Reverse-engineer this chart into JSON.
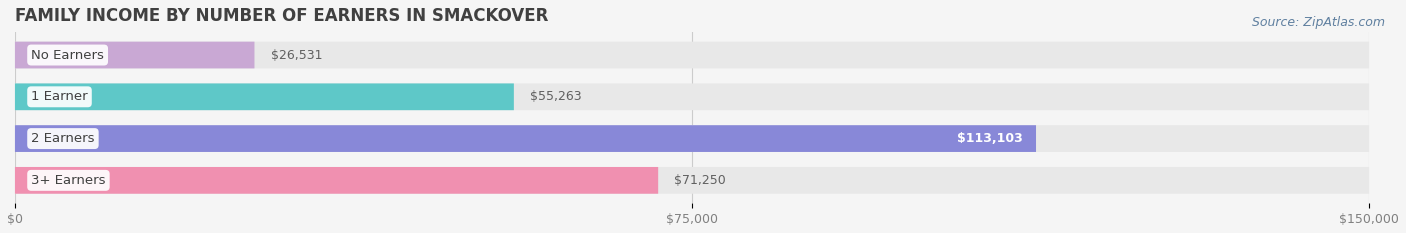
{
  "title": "FAMILY INCOME BY NUMBER OF EARNERS IN SMACKOVER",
  "source": "Source: ZipAtlas.com",
  "categories": [
    "No Earners",
    "1 Earner",
    "2 Earners",
    "3+ Earners"
  ],
  "values": [
    26531,
    55263,
    113103,
    71250
  ],
  "bar_colors": [
    "#c9a8d4",
    "#5ec8c8",
    "#8888d8",
    "#f090b0"
  ],
  "bar_bg_color": "#e8e8e8",
  "value_labels": [
    "$26,531",
    "$55,263",
    "$113,103",
    "$71,250"
  ],
  "xlim": [
    0,
    150000
  ],
  "xticks": [
    0,
    75000,
    150000
  ],
  "xtick_labels": [
    "$0",
    "$75,000",
    "$150,000"
  ],
  "background_color": "#f5f5f5",
  "title_color": "#404040",
  "title_fontsize": 12,
  "label_fontsize": 9.5,
  "value_fontsize": 9,
  "source_fontsize": 9,
  "bar_height": 0.64,
  "label_color": "#404040",
  "value_color_inside": "#ffffff",
  "value_color_outside": "#606060",
  "source_color": "#6080a0",
  "inside_threshold": 100000
}
